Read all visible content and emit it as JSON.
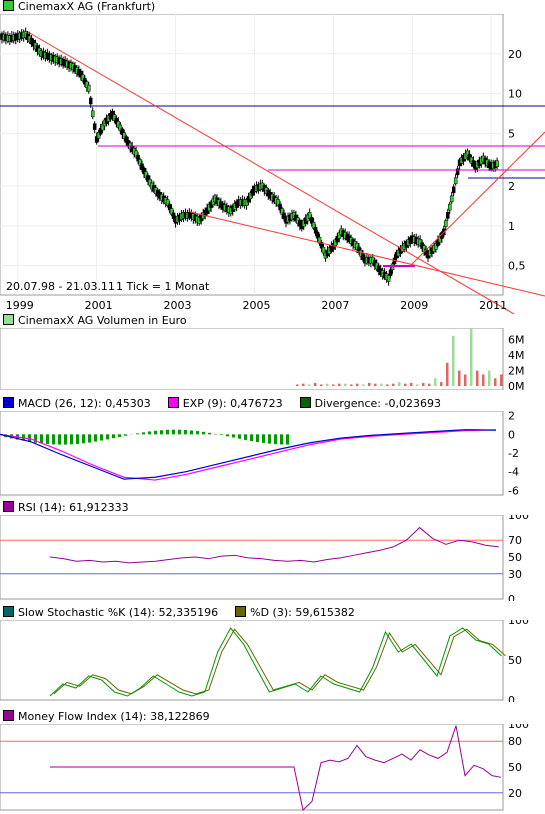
{
  "price": {
    "title": "CinemaxX AG (Frankfurt)",
    "color": "#33cc33",
    "y_ticks": [
      "20",
      "10",
      "5",
      "2",
      "1",
      "0,5"
    ],
    "y_log": true,
    "range_text": "20.07.98 - 21.03.11",
    "tick_text": "1 Tick = 1 Monat",
    "x_ticks": [
      "1999",
      "2001",
      "2003",
      "2005",
      "2007",
      "2009",
      "2011"
    ]
  },
  "volume": {
    "title": "CinemaxX AG Volumen in Euro",
    "color": "#99dd99",
    "y_ticks": [
      "6M",
      "4M",
      "2M",
      "0M"
    ]
  },
  "macd": {
    "items": [
      {
        "label": "MACD (26, 12): 0,45303",
        "color": "#0000cc"
      },
      {
        "label": "EXP (9): 0,476723",
        "color": "#ff00ff"
      },
      {
        "label": "Divergence: -0,023693",
        "color": "#006600"
      }
    ],
    "y_ticks": [
      "2",
      "0",
      "-2",
      "-4",
      "-6"
    ]
  },
  "rsi": {
    "label": "RSI (14): 61,912333",
    "color": "#990099",
    "y_ticks": [
      "100",
      "70",
      "50",
      "30",
      "0"
    ]
  },
  "stoch": {
    "items": [
      {
        "label": "Slow Stochastic %K (14): 52,335196",
        "color": "#006666"
      },
      {
        "label": "%D (3): 59,615382",
        "color": "#666600"
      }
    ],
    "y_ticks": [
      "100",
      "50",
      "0"
    ]
  },
  "mfi": {
    "label": "Money Flow Index (14): 38,122869",
    "color": "#990099",
    "y_ticks": [
      "100",
      "80",
      "50",
      "20"
    ]
  },
  "chart_data": {
    "type": "line",
    "y_scale": "log",
    "x_range": [
      "1998-07",
      "2011-03"
    ],
    "price_series": {
      "x": [
        1998.6,
        1998.8,
        1999.0,
        1999.2,
        1999.4,
        1999.6,
        1999.8,
        2000.0,
        2000.2,
        2000.4,
        2000.6,
        2000.8,
        2001.0,
        2001.2,
        2001.4,
        2001.6,
        2001.8,
        2002.0,
        2002.2,
        2002.4,
        2002.6,
        2002.8,
        2003.0,
        2003.2,
        2003.4,
        2003.6,
        2003.8,
        2004.0,
        2004.2,
        2004.4,
        2004.6,
        2004.8,
        2005.0,
        2005.2,
        2005.4,
        2005.6,
        2005.8,
        2006.0,
        2006.2,
        2006.4,
        2006.6,
        2006.8,
        2007.0,
        2007.2,
        2007.4,
        2007.6,
        2007.8,
        2008.0,
        2008.2,
        2008.4,
        2008.6,
        2008.8,
        2009.0,
        2009.2,
        2009.4,
        2009.6,
        2009.8,
        2010.0,
        2010.2,
        2010.4,
        2010.6,
        2010.8,
        2011.0,
        2011.2
      ],
      "y": [
        27,
        26,
        27,
        28,
        24,
        20,
        19,
        18,
        17,
        16,
        14,
        11,
        4.5,
        6,
        7,
        5.5,
        4.2,
        3.5,
        2.6,
        2.0,
        1.7,
        1.5,
        1.1,
        1.2,
        1.2,
        1.1,
        1.3,
        1.6,
        1.4,
        1.3,
        1.5,
        1.5,
        1.9,
        2.0,
        1.7,
        1.5,
        1.1,
        1.2,
        1.0,
        1.2,
        0.85,
        0.6,
        0.7,
        0.9,
        0.8,
        0.7,
        0.55,
        0.55,
        0.45,
        0.4,
        0.6,
        0.7,
        0.8,
        0.75,
        0.6,
        0.7,
        0.9,
        1.6,
        3.0,
        3.5,
        2.8,
        3.2,
        2.8,
        3.0
      ]
    },
    "volume_M": [
      0,
      0.2,
      0.3,
      0.2,
      0.4,
      0.2,
      0.3,
      0.2,
      0.3,
      0.3,
      0.2,
      0.3,
      0.2,
      0.4,
      0.3,
      0.3,
      0.2,
      0.3,
      0.5,
      0.3,
      0.4,
      0.2,
      0.4,
      0.3,
      1.0,
      0.5,
      3.0,
      6.5,
      2.0,
      1.5,
      8.0,
      2.0,
      1.5,
      2.0,
      1.0,
      1.5
    ],
    "rsi": [
      50,
      48,
      45,
      46,
      44,
      45,
      43,
      44,
      45,
      47,
      49,
      50,
      48,
      51,
      52,
      49,
      48,
      46,
      45,
      46,
      44,
      47,
      49,
      52,
      55,
      58,
      62,
      70,
      85,
      72,
      65,
      70,
      68,
      64,
      62
    ],
    "mfi_start": 50,
    "mfi_tail": [
      50,
      50,
      0,
      10,
      55,
      58,
      56,
      60,
      75,
      62,
      58,
      55,
      60,
      65,
      58,
      70,
      64,
      60,
      67,
      98,
      40,
      52,
      48,
      40,
      38
    ]
  }
}
